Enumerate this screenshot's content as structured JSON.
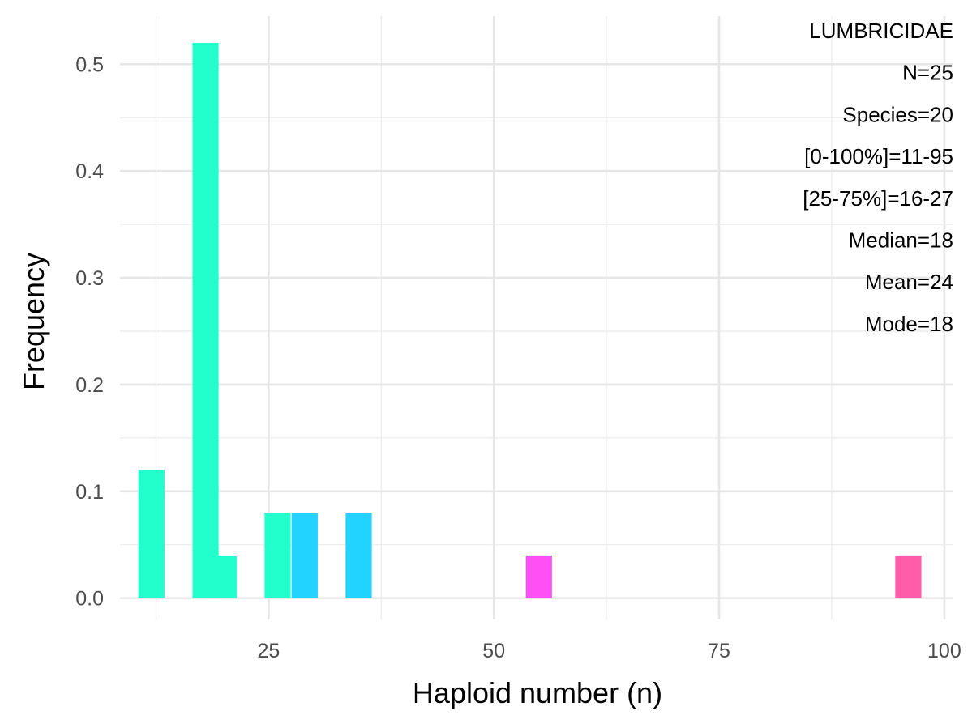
{
  "chart_data": {
    "type": "bar",
    "xlabel": "Haploid number (n)",
    "ylabel": "Frequency",
    "xlim": [
      8.5,
      101
    ],
    "ylim": [
      -0.02,
      0.545
    ],
    "x_ticks": [
      25,
      50,
      75,
      100
    ],
    "x_tick_labels": [
      "25",
      "50",
      "75",
      "100"
    ],
    "y_ticks": [
      0.0,
      0.1,
      0.2,
      0.3,
      0.4,
      0.5
    ],
    "y_tick_labels": [
      "0.0",
      "0.1",
      "0.2",
      "0.3",
      "0.4",
      "0.5"
    ],
    "grid": true,
    "bin_width": 2.9,
    "bars": [
      {
        "x": 12,
        "value": 0.12,
        "color": "#22FFCC"
      },
      {
        "x": 18,
        "value": 0.52,
        "color": "#22FFCC"
      },
      {
        "x": 20,
        "value": 0.04,
        "color": "#22FFCC"
      },
      {
        "x": 26,
        "value": 0.08,
        "color": "#22FFCC"
      },
      {
        "x": 29,
        "value": 0.08,
        "color": "#22D3FF"
      },
      {
        "x": 35,
        "value": 0.08,
        "color": "#22D3FF"
      },
      {
        "x": 55,
        "value": 0.04,
        "color": "#FF4FF5"
      },
      {
        "x": 96,
        "value": 0.04,
        "color": "#FF5CAA"
      }
    ],
    "annotations": [
      "LUMBRICIDAE",
      "N=25",
      "Species=20",
      "[0-100%]=11-95",
      "[25-75%]=16-27",
      "Median=18",
      "Mean=24",
      "Mode=18"
    ]
  }
}
